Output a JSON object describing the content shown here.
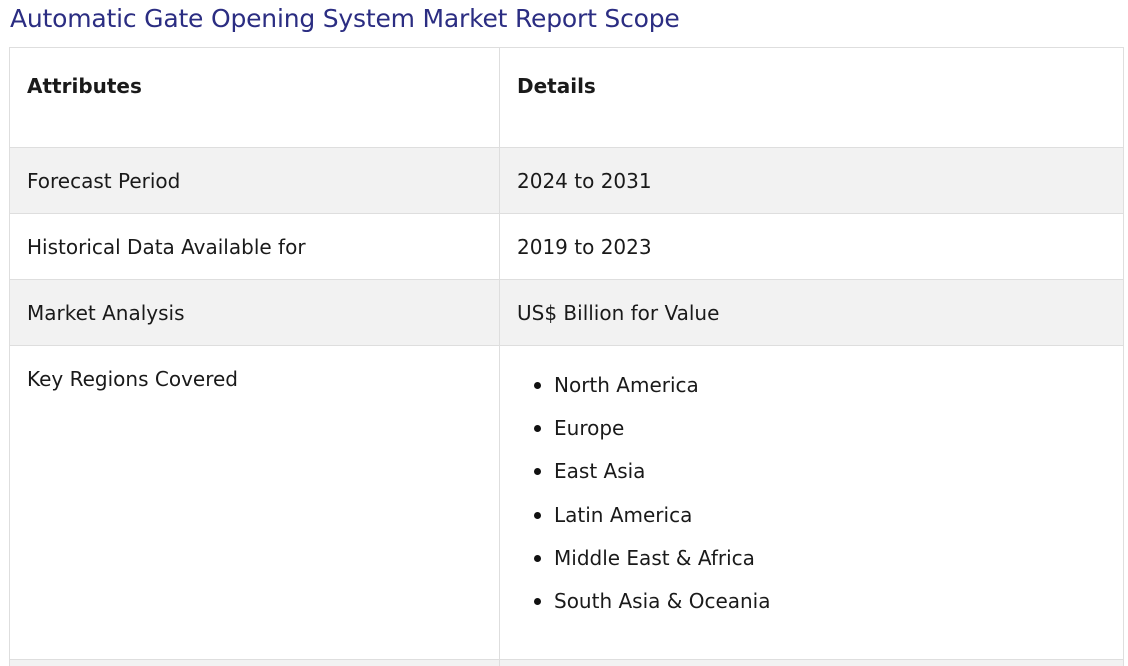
{
  "page": {
    "title": "Automatic Gate Opening System Market Report Scope"
  },
  "table": {
    "headers": {
      "attributes": "Attributes",
      "details": "Details"
    },
    "rows": [
      {
        "attribute": "Forecast Period",
        "detail": "2024 to 2031"
      },
      {
        "attribute": "Historical Data Available for",
        "detail": "2019 to 2023"
      },
      {
        "attribute": "Market Analysis",
        "detail": "US$ Billion for Value"
      }
    ],
    "regions": {
      "attribute": "Key Regions Covered",
      "items": [
        "North America",
        "Europe",
        "East Asia",
        "Latin America",
        "Middle East & Africa",
        "South Asia & Oceania"
      ]
    }
  },
  "colors": {
    "title": "#2b2d82",
    "row_shade": "#f2f2f2",
    "border": "#dedede"
  }
}
